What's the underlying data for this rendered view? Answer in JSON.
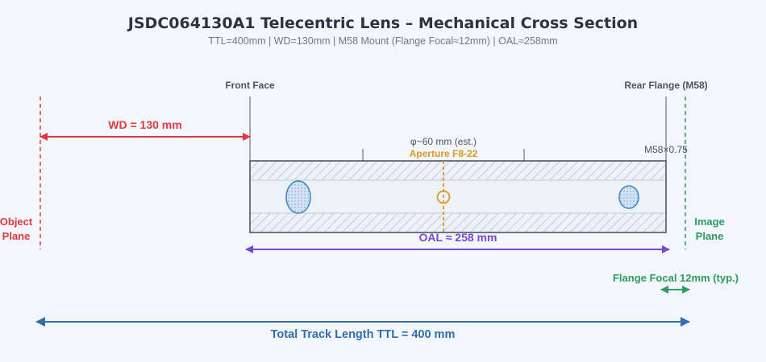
{
  "header": {
    "title": "JSDC064130A1 Telecentric Lens – Mechanical Cross Section",
    "subtitle": "TTL=400mm | WD=130mm | M58 Mount (Flange Focal≈12mm) | OAL≈258mm"
  },
  "labels": {
    "front_face": "Front Face",
    "rear_flange": "Rear Flange (M58)",
    "wd": "WD = 130 mm",
    "diameter": "φ~60 mm (est.)",
    "aperture": "Aperture F8-22",
    "thread": "M58×0.75",
    "oal": "OAL ≈ 258 mm",
    "flange_focal": "Flange Focal 12mm (typ.)",
    "ttl": "Total Track Length TTL = 400 mm",
    "object_plane": [
      "Object",
      "Plane"
    ],
    "image_plane": [
      "Image",
      "Plane"
    ]
  },
  "colors": {
    "background": "#f3f6fa",
    "red": "#e0393e",
    "purple": "#7b48d2",
    "green": "#2f9a61",
    "blue": "#2f6fb0",
    "orange": "#d99a24",
    "body_outline": "#4d5866",
    "lens_fill": "#bcd3ec",
    "lens_stroke": "#3a86c4"
  }
}
